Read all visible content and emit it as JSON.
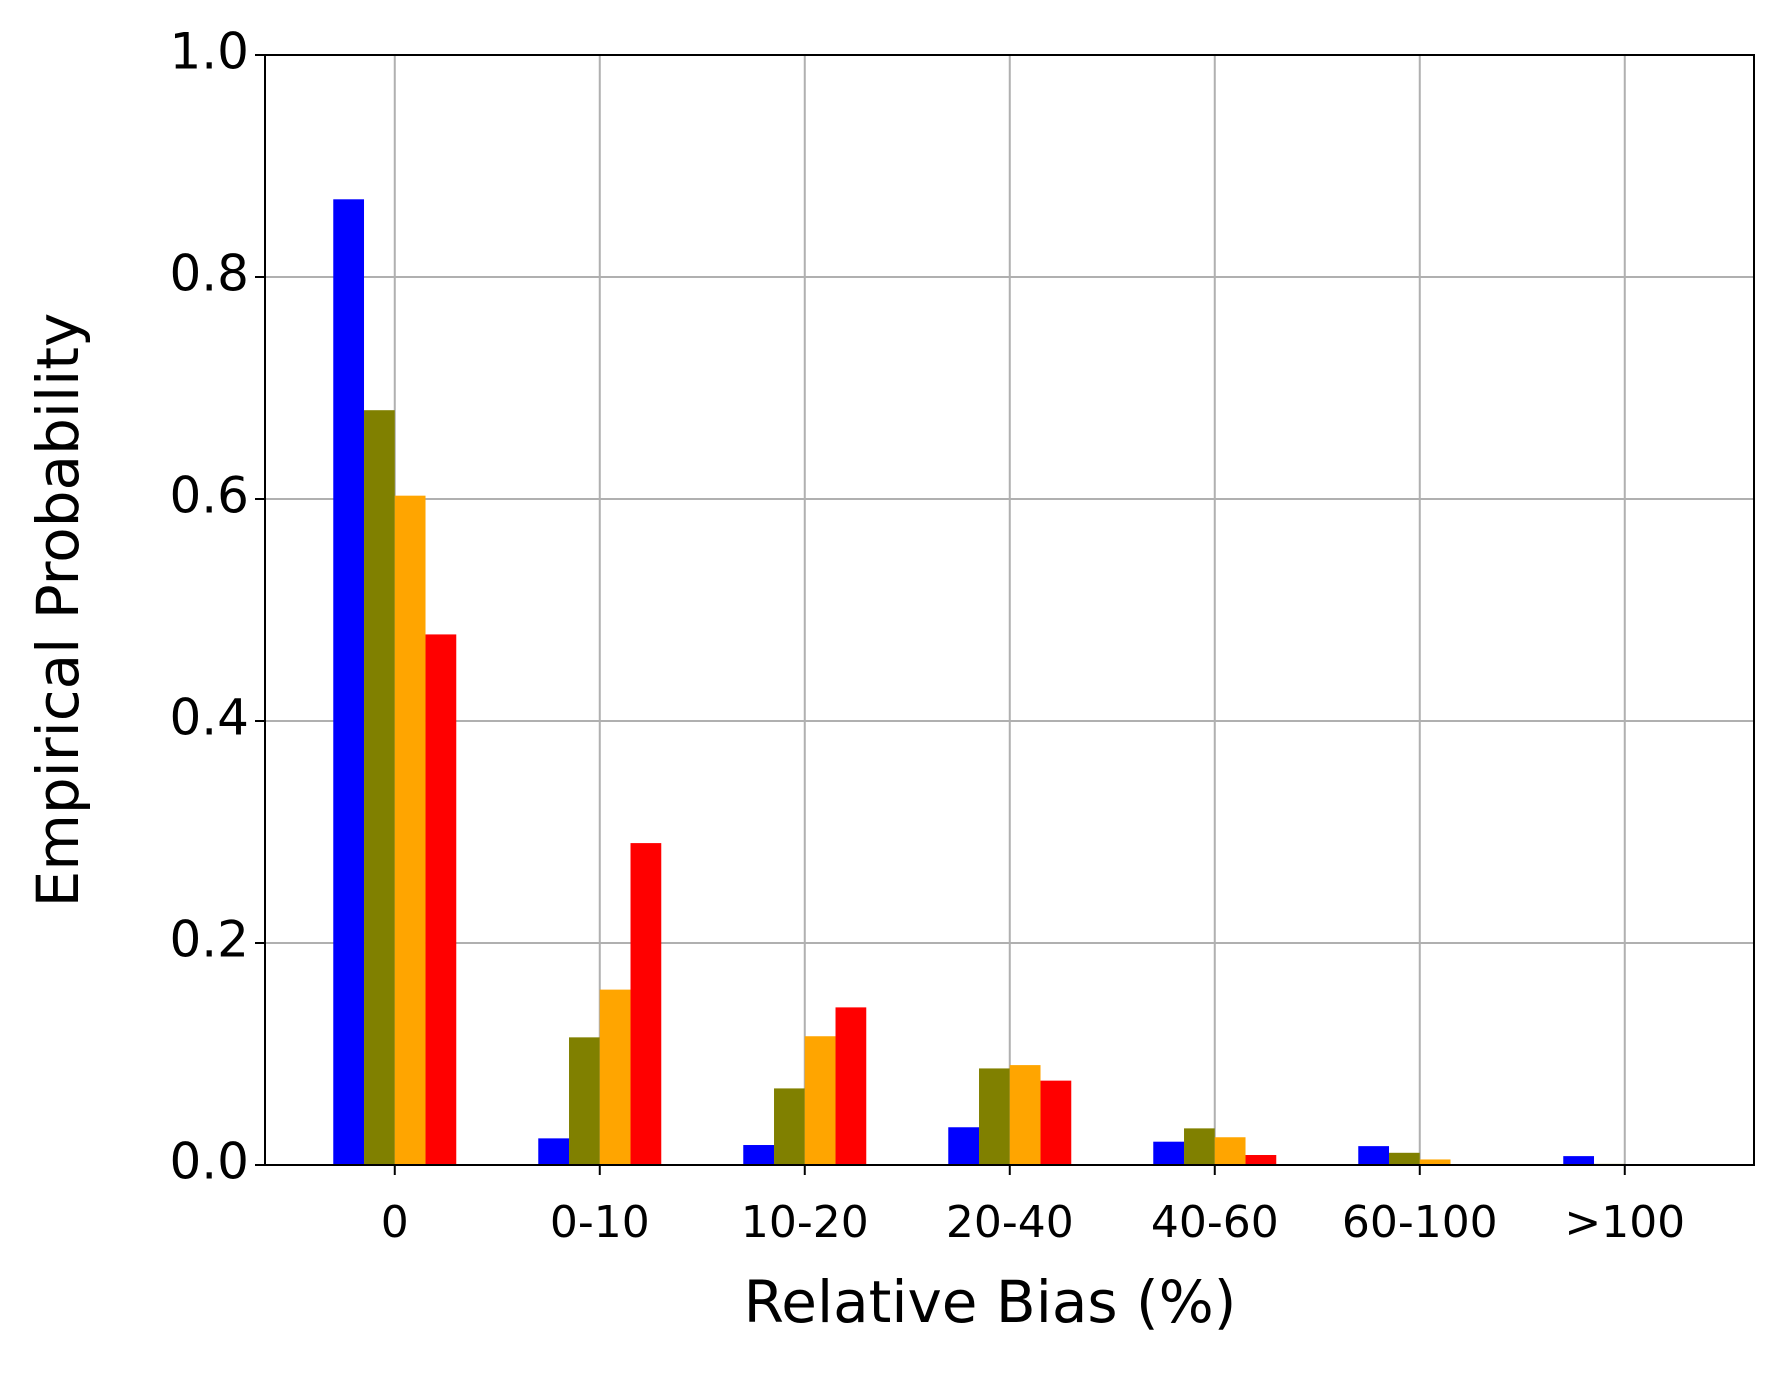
{
  "chart_data": {
    "type": "bar",
    "x_label": "Relative Bias (%)",
    "y_label": "Empirical Probability",
    "categories": [
      "0",
      "0-10",
      "10-20",
      "20-40",
      "40-60",
      "60-100",
      ">100"
    ],
    "series": [
      {
        "color": "#0000ff",
        "values": [
          0.87,
          0.024,
          0.018,
          0.034,
          0.021,
          0.017,
          0.008
        ]
      },
      {
        "color": "#808000",
        "values": [
          0.68,
          0.115,
          0.069,
          0.087,
          0.033,
          0.011,
          0.001
        ]
      },
      {
        "color": "#ffa500",
        "values": [
          0.603,
          0.158,
          0.116,
          0.09,
          0.025,
          0.005,
          0
        ]
      },
      {
        "color": "#ff0000",
        "values": [
          0.478,
          0.29,
          0.142,
          0.076,
          0.009,
          0,
          0
        ]
      }
    ],
    "ylim": [
      0,
      1.0
    ],
    "yticks": [
      {
        "value": 0,
        "label": "0.0"
      },
      0.2,
      0.4,
      0.6,
      0.8,
      {
        "value": 1.0,
        "label": "1.0"
      }
    ],
    "grid": true
  }
}
